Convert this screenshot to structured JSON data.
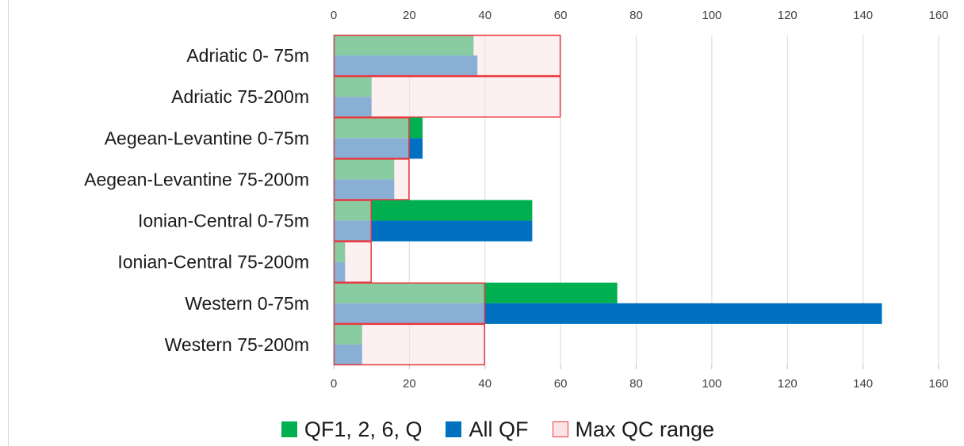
{
  "chart_data": {
    "type": "bar",
    "orientation": "horizontal",
    "categories": [
      "Adriatic 0- 75m",
      "Adriatic 75-200m",
      "Aegean-Levantine 0-75m",
      "Aegean-Levantine 75-200m",
      "Ionian-Central 0-75m",
      "Ionian-Central 75-200m",
      "Western 0-75m",
      "Western 75-200m"
    ],
    "series": [
      {
        "name": "QF1, 2, 6, Q",
        "color": "#00b050",
        "values": [
          37,
          10,
          23.5,
          16,
          52.5,
          3,
          75,
          7.5
        ]
      },
      {
        "name": "All QF",
        "color": "#0070c0",
        "values": [
          38,
          10,
          23.5,
          16,
          52.5,
          3,
          145,
          7.5
        ]
      },
      {
        "name": "Max QC range",
        "color": "#fce4e6",
        "border_color": "#e8393f",
        "values": [
          60,
          60,
          20,
          20,
          10,
          10,
          40,
          40
        ]
      }
    ],
    "xlim": [
      0,
      160
    ],
    "x_ticks": [
      0,
      20,
      40,
      60,
      80,
      100,
      120,
      140,
      160
    ],
    "x_tick_labels": [
      "0",
      "20",
      "40",
      "60",
      "80",
      "100",
      "120",
      "140",
      "160"
    ],
    "axis_ticks_top_and_bottom": true,
    "grid": true,
    "legend_position": "bottom",
    "title": "",
    "xlabel": "",
    "ylabel": ""
  }
}
